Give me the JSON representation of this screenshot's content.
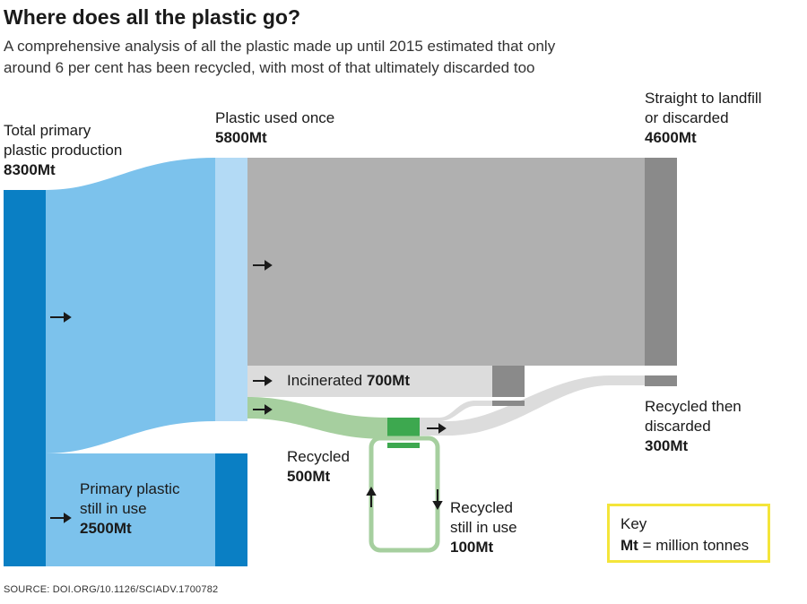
{
  "header": {
    "title": "Where does all the plastic go?",
    "subtitle": "A comprehensive analysis of all the plastic made up until 2015 estimated that only around 6 per cent has been recycled, with most of that ultimately discarded too"
  },
  "nodes": {
    "total": {
      "label_line1": "Total primary",
      "label_line2": "plastic production",
      "value": "8300Mt"
    },
    "used_once": {
      "label": "Plastic used once",
      "value": "5800Mt"
    },
    "landfill": {
      "label_line1": "Straight to landfill",
      "label_line2": "or discarded",
      "value": "4600Mt"
    },
    "incinerated": {
      "label": "Incinerated",
      "value": "700Mt"
    },
    "recycled": {
      "label": "Recycled",
      "value": "500Mt"
    },
    "recycled_discarded": {
      "label_line1": "Recycled then",
      "label_line2": "discarded",
      "value": "300Mt"
    },
    "recycled_in_use": {
      "label_line1": "Recycled",
      "label_line2": "still in use",
      "value": "100Mt"
    },
    "primary_in_use": {
      "label_line1": "Primary plastic",
      "label_line2": "still in use",
      "value": "2500Mt"
    }
  },
  "key": {
    "term": "Mt",
    "definition": "= million tonnes",
    "heading": "Key"
  },
  "source": "SOURCE: DOI.ORG/10.1126/SCIADV.1700782",
  "colors": {
    "dark_blue": "#0a7fc4",
    "light_blue": "#7cc2ec",
    "pale_blue": "#b3daf5",
    "grey": "#b0b0b0",
    "dark_grey": "#8a8a8a",
    "light_grey": "#dcdcdc",
    "green": "#a6cf9f",
    "dark_green": "#3da84f"
  }
}
